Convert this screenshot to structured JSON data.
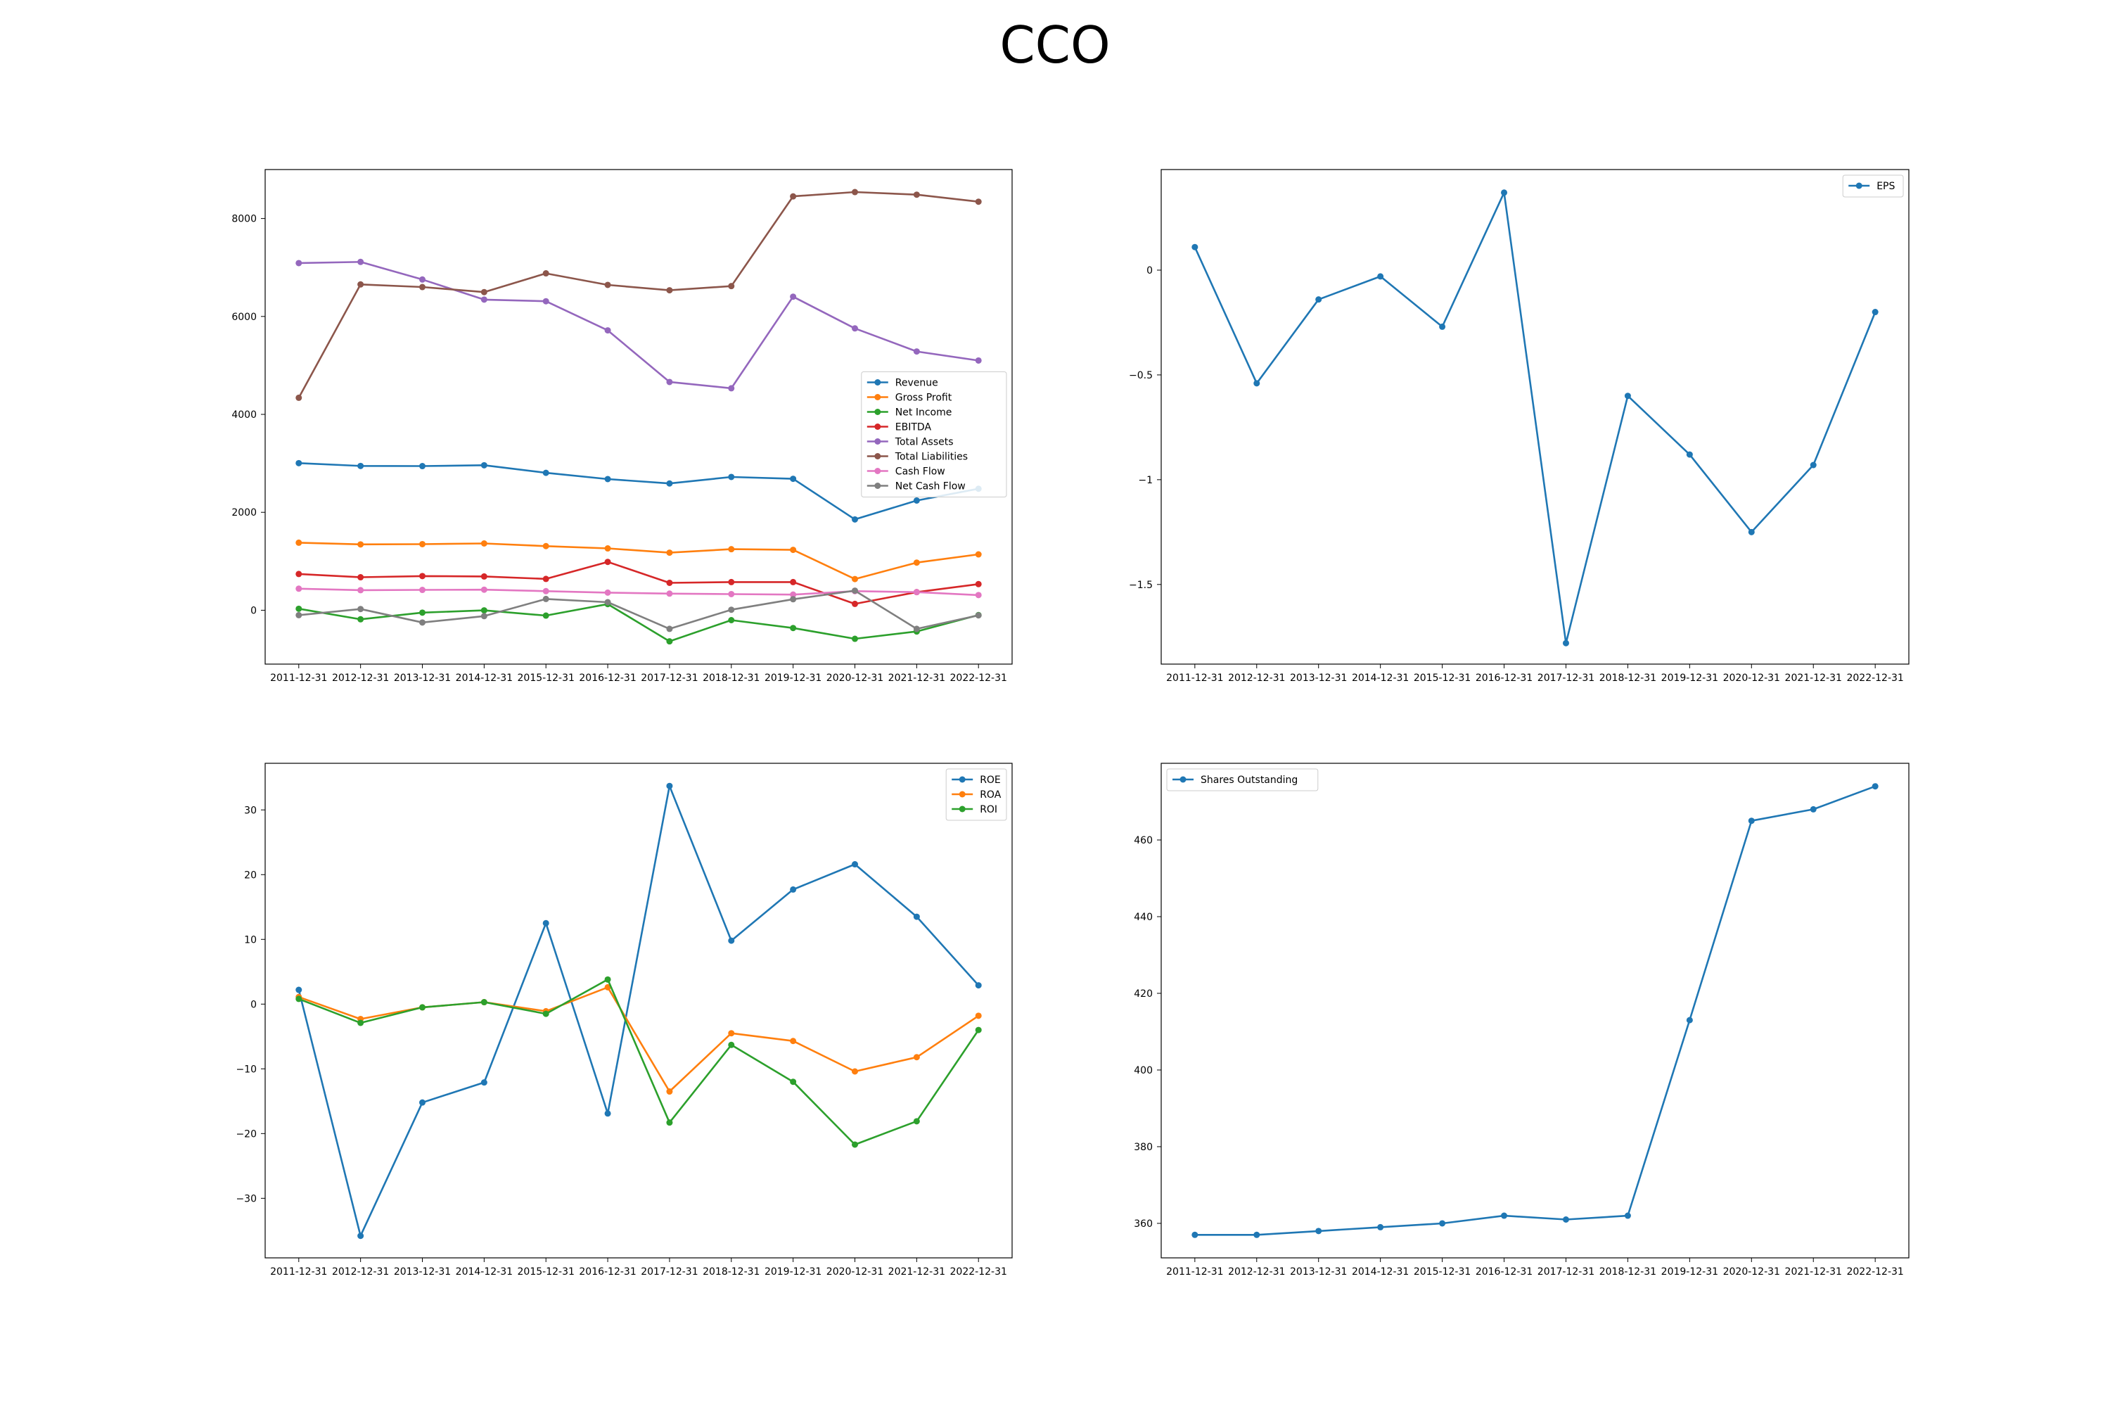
{
  "figure": {
    "title": "CCO"
  },
  "chart_data": [
    {
      "type": "line",
      "x": [
        "2011-12-31",
        "2012-12-31",
        "2013-12-31",
        "2014-12-31",
        "2015-12-31",
        "2016-12-31",
        "2017-12-31",
        "2018-12-31",
        "2019-12-31",
        "2020-12-31",
        "2021-12-31",
        "2022-12-31"
      ],
      "ylim": [
        -1100,
        9000
      ],
      "yticks": [
        0,
        2000,
        4000,
        6000,
        8000
      ],
      "grid": false,
      "legend": "center-right",
      "series": [
        {
          "name": "Revenue",
          "color": "#1f77b4",
          "values": [
            3004,
            2947,
            2944,
            2961,
            2806,
            2679,
            2589,
            2722,
            2684,
            1855,
            2241,
            2481
          ]
        },
        {
          "name": "Gross Profit",
          "color": "#ff7f0e",
          "values": [
            1380,
            1345,
            1350,
            1364,
            1310,
            1263,
            1176,
            1247,
            1233,
            637,
            973,
            1141
          ]
        },
        {
          "name": "Net Income",
          "color": "#2ca02c",
          "values": [
            30,
            -185,
            -49,
            -2,
            -109,
            125,
            -635,
            -202,
            -363,
            -583,
            -434,
            -98
          ]
        },
        {
          "name": "EBITDA",
          "color": "#d62728",
          "values": [
            740,
            674,
            698,
            690,
            640,
            987,
            560,
            575,
            575,
            130,
            370,
            534
          ]
        },
        {
          "name": "Total Assets",
          "color": "#9467bd",
          "values": [
            7090,
            7114,
            6755,
            6344,
            6310,
            5716,
            4662,
            4533,
            6404,
            5756,
            5285,
            5100
          ]
        },
        {
          "name": "Total Liabilities",
          "color": "#8c564b",
          "values": [
            4339,
            6654,
            6600,
            6497,
            6880,
            6644,
            6535,
            6620,
            8452,
            8540,
            8487,
            8343
          ]
        },
        {
          "name": "Cash Flow",
          "color": "#e377c2",
          "values": [
            440,
            410,
            415,
            420,
            390,
            360,
            340,
            330,
            320,
            390,
            370,
            310
          ]
        },
        {
          "name": "Net Cash Flow",
          "color": "#7f7f7f",
          "values": [
            -100,
            25,
            -250,
            -120,
            230,
            165,
            -380,
            10,
            225,
            400,
            -380,
            -105
          ]
        }
      ]
    },
    {
      "type": "line",
      "x": [
        "2011-12-31",
        "2012-12-31",
        "2013-12-31",
        "2014-12-31",
        "2015-12-31",
        "2016-12-31",
        "2017-12-31",
        "2018-12-31",
        "2019-12-31",
        "2020-12-31",
        "2021-12-31",
        "2022-12-31"
      ],
      "ylim": [
        -1.88,
        0.48
      ],
      "yticks": [
        0.0,
        -0.5,
        -1.0,
        -1.5
      ],
      "grid": false,
      "legend": "top-right",
      "series": [
        {
          "name": "EPS",
          "color": "#1f77b4",
          "values": [
            0.11,
            -0.54,
            -0.14,
            -0.03,
            -0.27,
            0.37,
            -1.78,
            -0.6,
            -0.88,
            -1.25,
            -0.93,
            -0.2
          ]
        }
      ]
    },
    {
      "type": "line",
      "x": [
        "2011-12-31",
        "2012-12-31",
        "2013-12-31",
        "2014-12-31",
        "2015-12-31",
        "2016-12-31",
        "2017-12-31",
        "2018-12-31",
        "2019-12-31",
        "2020-12-31",
        "2021-12-31",
        "2022-12-31"
      ],
      "ylim": [
        -39.2,
        37.2
      ],
      "yticks": [
        30,
        20,
        10,
        0,
        -10,
        -20,
        -30
      ],
      "grid": false,
      "legend": "top-right",
      "series": [
        {
          "name": "ROE",
          "color": "#1f77b4",
          "values": [
            2.2,
            -35.8,
            -15.2,
            -12.1,
            12.5,
            -16.9,
            33.7,
            9.8,
            17.7,
            21.6,
            13.5,
            2.9
          ]
        },
        {
          "name": "ROA",
          "color": "#ff7f0e",
          "values": [
            1.1,
            -2.3,
            -0.5,
            0.3,
            -1.1,
            2.6,
            -13.5,
            -4.5,
            -5.7,
            -10.4,
            -8.2,
            -1.8
          ]
        },
        {
          "name": "ROI",
          "color": "#2ca02c",
          "values": [
            0.8,
            -2.9,
            -0.5,
            0.3,
            -1.5,
            3.8,
            -18.3,
            -6.3,
            -12.0,
            -21.7,
            -18.1,
            -4.0
          ]
        }
      ]
    },
    {
      "type": "line",
      "x": [
        "2011-12-31",
        "2012-12-31",
        "2013-12-31",
        "2014-12-31",
        "2015-12-31",
        "2016-12-31",
        "2017-12-31",
        "2018-12-31",
        "2019-12-31",
        "2020-12-31",
        "2021-12-31",
        "2022-12-31"
      ],
      "ylim": [
        351,
        480
      ],
      "yticks": [
        460,
        440,
        420,
        400,
        380,
        360
      ],
      "grid": false,
      "legend": "top-left",
      "series": [
        {
          "name": "Shares Outstanding",
          "color": "#1f77b4",
          "values": [
            357,
            357,
            358,
            359,
            360,
            362,
            361,
            362,
            413,
            465,
            468,
            474
          ]
        }
      ]
    }
  ]
}
